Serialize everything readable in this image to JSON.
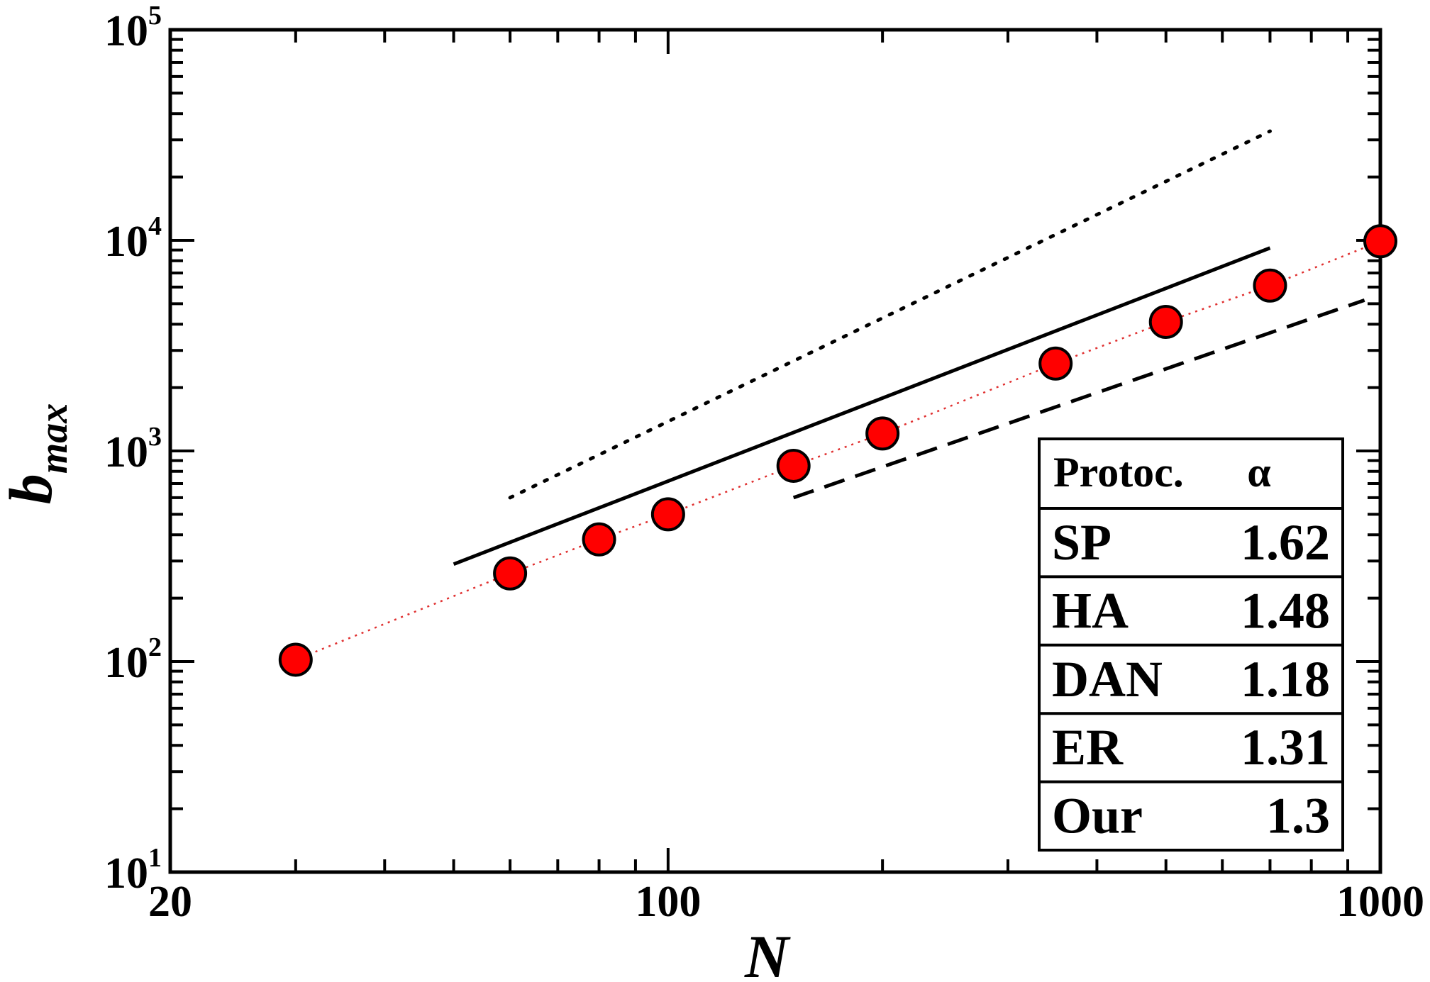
{
  "chart_data": {
    "type": "scatter",
    "xscale": "log",
    "yscale": "log",
    "xlim": [
      20,
      1000
    ],
    "ylim": [
      10,
      100000
    ],
    "xlabel": "N",
    "ylabel": {
      "base": "b",
      "subscript": "max"
    },
    "x_tick_labels": [
      {
        "value": 20,
        "text": "20"
      },
      {
        "value": 100,
        "text": "100"
      },
      {
        "value": 1000,
        "text": "1000"
      }
    ],
    "y_tick_labels": [
      {
        "value": 10,
        "base": "10",
        "exp": "1"
      },
      {
        "value": 100,
        "base": "10",
        "exp": "2"
      },
      {
        "value": 1000,
        "base": "10",
        "exp": "3"
      },
      {
        "value": 10000,
        "base": "10",
        "exp": "4"
      },
      {
        "value": 100000,
        "base": "10",
        "exp": "5"
      }
    ],
    "series": [
      {
        "marker": "circle",
        "color": "#ff0000",
        "x": [
          30,
          60,
          80,
          100,
          150,
          200,
          350,
          500,
          700,
          1000
        ],
        "y": [
          102,
          262,
          380,
          500,
          850,
          1210,
          2600,
          4100,
          6100,
          9900
        ],
        "trend_line": {
          "style": "dotted",
          "color": "#e03030"
        }
      }
    ],
    "reference_lines": [
      {
        "style": "dotted",
        "color": "#000000",
        "x": [
          60,
          700
        ],
        "y": [
          600,
          33000
        ]
      },
      {
        "style": "solid",
        "color": "#000000",
        "x": [
          50,
          700
        ],
        "y": [
          290,
          9200
        ]
      },
      {
        "style": "dashed",
        "color": "#000000",
        "x": [
          150,
          950
        ],
        "y": [
          600,
          5200
        ]
      }
    ],
    "legend": {
      "position": "bottom-right",
      "header": {
        "protocol": "Protoc.",
        "alpha": "α"
      },
      "rows": [
        {
          "protocol": "SP",
          "alpha": "1.62"
        },
        {
          "protocol": "HA",
          "alpha": "1.48"
        },
        {
          "protocol": "DAN",
          "alpha": "1.18"
        },
        {
          "protocol": "ER",
          "alpha": "1.31"
        },
        {
          "protocol": "Our",
          "alpha": "1.3"
        }
      ]
    }
  }
}
